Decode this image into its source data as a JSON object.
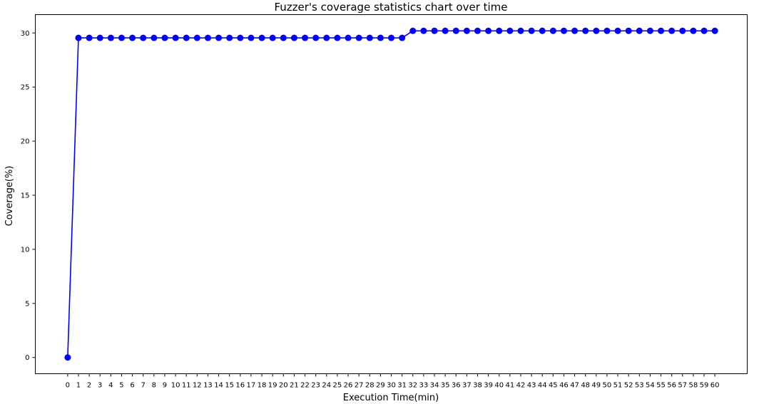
{
  "chart_data": {
    "type": "line",
    "title": "Fuzzer's coverage statistics chart over time",
    "xlabel": "Execution Time(min)",
    "ylabel": "Coverage(%)",
    "x": [
      0,
      1,
      2,
      3,
      4,
      5,
      6,
      7,
      8,
      9,
      10,
      11,
      12,
      13,
      14,
      15,
      16,
      17,
      18,
      19,
      20,
      21,
      22,
      23,
      24,
      25,
      26,
      27,
      28,
      29,
      30,
      31,
      32,
      33,
      34,
      35,
      36,
      37,
      38,
      39,
      40,
      41,
      42,
      43,
      44,
      45,
      46,
      47,
      48,
      49,
      50,
      51,
      52,
      53,
      54,
      55,
      56,
      57,
      58,
      59,
      60
    ],
    "series": [
      {
        "values": [
          0,
          29.55,
          29.55,
          29.55,
          29.55,
          29.55,
          29.55,
          29.55,
          29.55,
          29.55,
          29.55,
          29.55,
          29.55,
          29.55,
          29.55,
          29.55,
          29.55,
          29.55,
          29.55,
          29.55,
          29.55,
          29.55,
          29.55,
          29.55,
          29.55,
          29.55,
          29.55,
          29.55,
          29.55,
          29.55,
          29.55,
          29.55,
          30.2,
          30.2,
          30.2,
          30.2,
          30.2,
          30.2,
          30.2,
          30.2,
          30.2,
          30.2,
          30.2,
          30.2,
          30.2,
          30.2,
          30.2,
          30.2,
          30.2,
          30.2,
          30.2,
          30.2,
          30.2,
          30.2,
          30.2,
          30.2,
          30.2,
          30.2,
          30.2,
          30.2,
          30.2
        ],
        "color": "#0000ff",
        "marker": "circle"
      }
    ],
    "yticks": [
      0,
      5,
      10,
      15,
      20,
      25,
      30
    ],
    "xlim": [
      -3,
      63
    ],
    "ylim": [
      -1.5,
      31.7
    ],
    "grid": false,
    "legend": "none"
  }
}
